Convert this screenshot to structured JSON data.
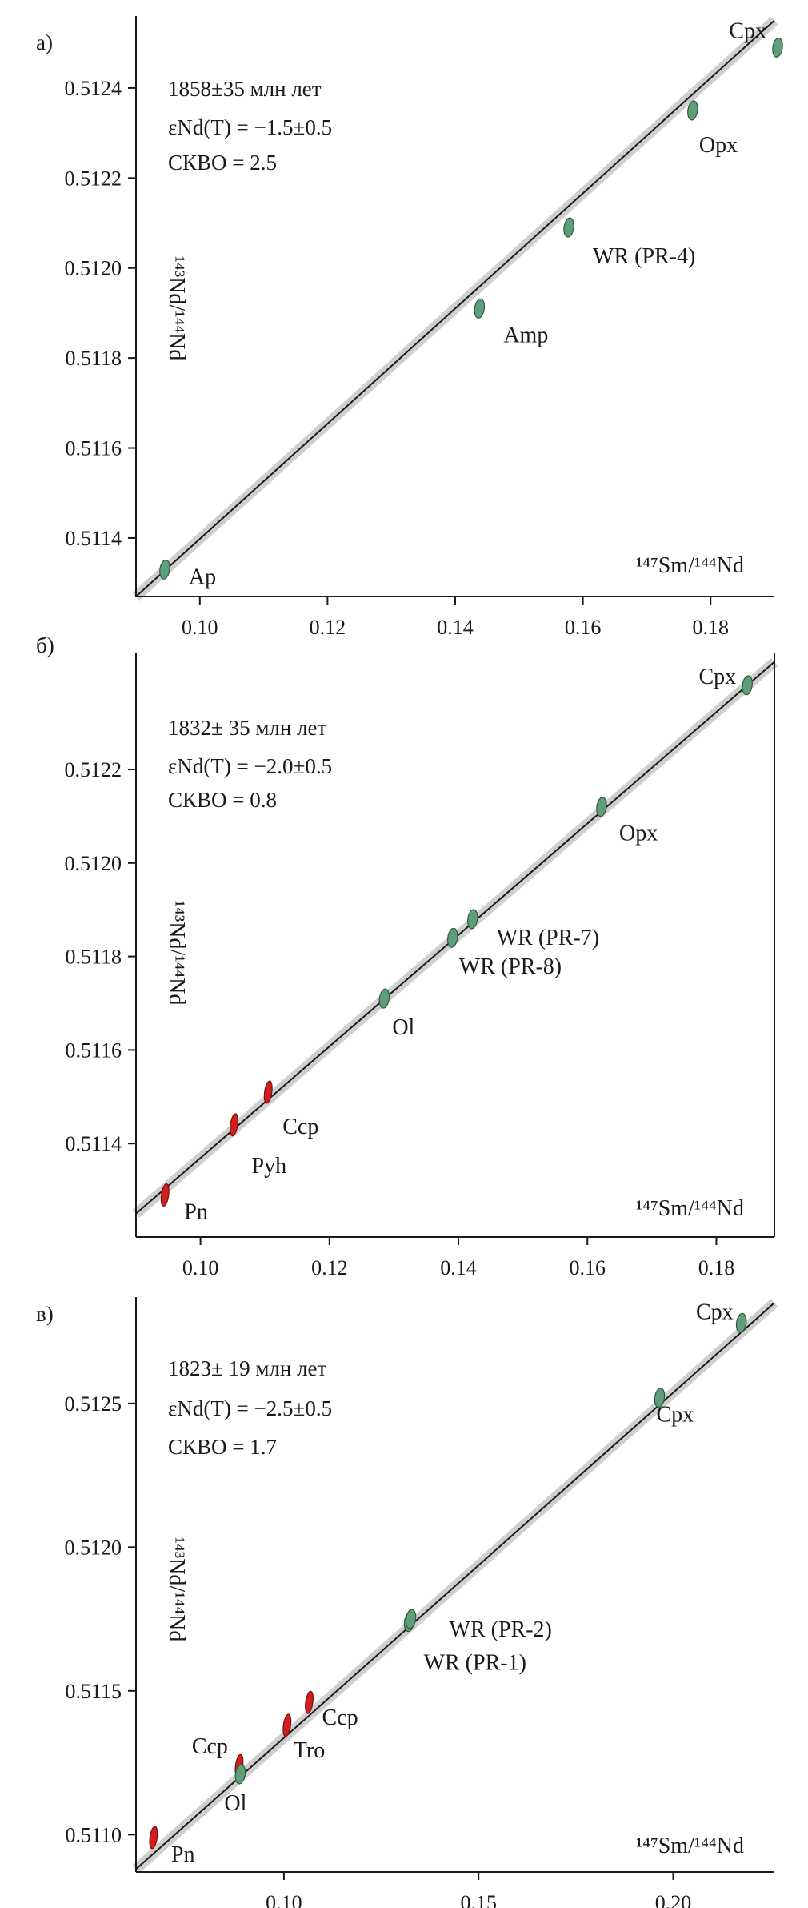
{
  "colors": {
    "mineral": "#5f9e78",
    "mineral_stroke": "#2f5b3d",
    "sulfide": "#d01f1f",
    "sulfide_stroke": "#7a0d0d",
    "band": "#cfcfcf",
    "line": "#1a1a1a"
  },
  "chart_data": [
    {
      "type": "scatter",
      "panel_label": "а)",
      "xlabel": "¹⁴⁷Sm/¹⁴⁴Nd",
      "ylabel": "¹⁴³Nd/¹⁴⁴Nd",
      "xlim": [
        0.09,
        0.19
      ],
      "ylim": [
        0.51127,
        0.51256
      ],
      "xticks": [
        0.1,
        0.12,
        0.14,
        0.16,
        0.18
      ],
      "xtick_labels": [
        "0.10",
        "0.12",
        "0.14",
        "0.16",
        "0.18"
      ],
      "yticks": [
        0.5114,
        0.5116,
        0.5118,
        0.512,
        0.5122,
        0.5124
      ],
      "ytick_labels": [
        "0.5114",
        "0.5116",
        "0.5118",
        "0.5120",
        "0.5122",
        "0.5124"
      ],
      "annotations": [
        "1858±35 млн лет",
        "εNd(T) = −1.5±0.5",
        "СКВО = 2.5"
      ],
      "isochron": {
        "x": [
          0.09,
          0.19
        ],
        "y": [
          0.51127,
          0.51255
        ]
      },
      "points": [
        {
          "label": "Ap",
          "x": 0.0945,
          "y": 0.51133,
          "kind": "mineral"
        },
        {
          "label": "Amp",
          "x": 0.1438,
          "y": 0.51191,
          "kind": "mineral"
        },
        {
          "label": "WR (PR-4)",
          "x": 0.1578,
          "y": 0.51209,
          "kind": "mineral"
        },
        {
          "label": "Opx",
          "x": 0.1772,
          "y": 0.51235,
          "kind": "mineral"
        },
        {
          "label": "Cpx",
          "x": 0.1905,
          "y": 0.51249,
          "kind": "mineral"
        }
      ]
    },
    {
      "type": "scatter",
      "panel_label": "б)",
      "xlabel": "¹⁴⁷Sm/¹⁴⁴Nd",
      "ylabel": "¹⁴³Nd/¹⁴⁴Nd",
      "xlim": [
        0.09,
        0.189
      ],
      "ylim": [
        0.5112,
        0.51245
      ],
      "xticks": [
        0.1,
        0.12,
        0.14,
        0.16,
        0.18
      ],
      "xtick_labels": [
        "0.10",
        "0.12",
        "0.14",
        "0.16",
        "0.18"
      ],
      "yticks": [
        0.5114,
        0.5116,
        0.5118,
        0.512,
        0.5122
      ],
      "ytick_labels": [
        "0.5114",
        "0.5116",
        "0.5118",
        "0.5120",
        "0.5122"
      ],
      "annotations": [
        "1832± 35 млн лет",
        "εNd(T) = −2.0±0.5",
        "СКВО = 0.8"
      ],
      "isochron": {
        "x": [
          0.09,
          0.189
        ],
        "y": [
          0.51125,
          0.51243
        ]
      },
      "points": [
        {
          "label": "Pn",
          "x": 0.0945,
          "y": 0.51129,
          "kind": "sulfide"
        },
        {
          "label": "Pyh",
          "x": 0.1052,
          "y": 0.51144,
          "kind": "sulfide"
        },
        {
          "label": "Ccp",
          "x": 0.1105,
          "y": 0.51151,
          "kind": "sulfide"
        },
        {
          "label": "Ol",
          "x": 0.1285,
          "y": 0.51171,
          "kind": "mineral"
        },
        {
          "label": "WR (PR-8)",
          "x": 0.1391,
          "y": 0.51184,
          "kind": "mineral"
        },
        {
          "label": "WR (PR-7)",
          "x": 0.1422,
          "y": 0.51188,
          "kind": "mineral"
        },
        {
          "label": "Opx",
          "x": 0.1622,
          "y": 0.51212,
          "kind": "mineral"
        },
        {
          "label": "Cpx",
          "x": 0.1848,
          "y": 0.51238,
          "kind": "mineral"
        }
      ]
    },
    {
      "type": "scatter",
      "panel_label": "в)",
      "xlabel": "¹⁴⁷Sm/¹⁴⁴Nd",
      "ylabel": "¹⁴³Nd/¹⁴⁴Nd",
      "xlim": [
        0.062,
        0.226
      ],
      "ylim": [
        0.51087,
        0.51287
      ],
      "xticks": [
        0.1,
        0.15,
        0.2
      ],
      "xtick_labels": [
        "0.10",
        "0.15",
        "0.20"
      ],
      "yticks": [
        0.511,
        0.5115,
        0.512,
        0.5125
      ],
      "ytick_labels": [
        "0.5110",
        "0.5115",
        "0.5120",
        "0.5125"
      ],
      "annotations": [
        "1823± 19 млн лет",
        "εNd(T) = −2.5±0.5",
        "СКВО = 1.7"
      ],
      "isochron": {
        "x": [
          0.062,
          0.226
        ],
        "y": [
          0.51088,
          0.51285
        ]
      },
      "points": [
        {
          "label": "Pn",
          "x": 0.0665,
          "y": 0.51099,
          "kind": "sulfide"
        },
        {
          "label": "Ccp",
          "x": 0.0885,
          "y": 0.51124,
          "kind": "sulfide"
        },
        {
          "label": "Ol",
          "x": 0.0888,
          "y": 0.51121,
          "kind": "mineral"
        },
        {
          "label": "Tro",
          "x": 0.1008,
          "y": 0.51138,
          "kind": "sulfide"
        },
        {
          "label": "Ccp",
          "x": 0.1065,
          "y": 0.51146,
          "kind": "sulfide"
        },
        {
          "label": "WR (PR-1)",
          "x": 0.1322,
          "y": 0.51174,
          "kind": "mineral"
        },
        {
          "label": "WR (PR-2)",
          "x": 0.1326,
          "y": 0.51175,
          "kind": "mineral"
        },
        {
          "label": "Cpx",
          "x": 0.1965,
          "y": 0.51252,
          "kind": "mineral"
        },
        {
          "label": "Cpx",
          "x": 0.2175,
          "y": 0.51278,
          "kind": "mineral"
        }
      ]
    }
  ]
}
